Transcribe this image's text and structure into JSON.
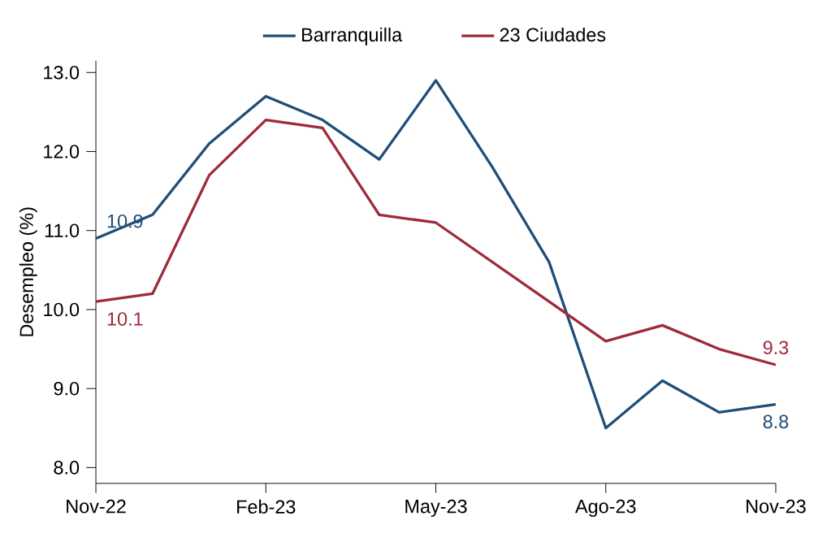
{
  "chart_data": {
    "type": "line",
    "ylabel": "Desempleo (%)",
    "categories": [
      "Nov-22",
      null,
      null,
      "Feb-23",
      null,
      null,
      "May-23",
      null,
      null,
      "Ago-23",
      null,
      null,
      "Nov-23"
    ],
    "series": [
      {
        "name": "Barranquilla",
        "color": "#1f4e79",
        "values": [
          10.9,
          11.2,
          12.1,
          12.7,
          12.4,
          11.9,
          12.9,
          11.8,
          10.6,
          8.5,
          9.1,
          8.7,
          8.8
        ],
        "value_labels": [
          "10.9",
          null,
          null,
          null,
          null,
          null,
          null,
          null,
          null,
          null,
          null,
          null,
          "8.8"
        ]
      },
      {
        "name": "23 Ciudades",
        "color": "#9e2a3a",
        "values": [
          10.1,
          10.2,
          11.7,
          12.4,
          12.3,
          11.2,
          11.1,
          10.6,
          10.1,
          9.6,
          9.8,
          9.5,
          9.3
        ],
        "value_labels": [
          "10.1",
          null,
          null,
          null,
          null,
          null,
          null,
          null,
          null,
          null,
          null,
          null,
          "9.3"
        ]
      }
    ],
    "ylim": [
      7.8,
      13.15
    ],
    "yticks": [
      {
        "value": 8,
        "label": "8.0"
      },
      {
        "value": 9,
        "label": "9.0"
      },
      {
        "value": 10,
        "label": "10.0"
      },
      {
        "value": 11,
        "label": "11.0"
      },
      {
        "value": 12,
        "label": "12.0"
      },
      {
        "value": 13,
        "label": "13.0"
      }
    ],
    "grid": false,
    "legend": "top",
    "marker": "none",
    "line_style": "solid"
  }
}
